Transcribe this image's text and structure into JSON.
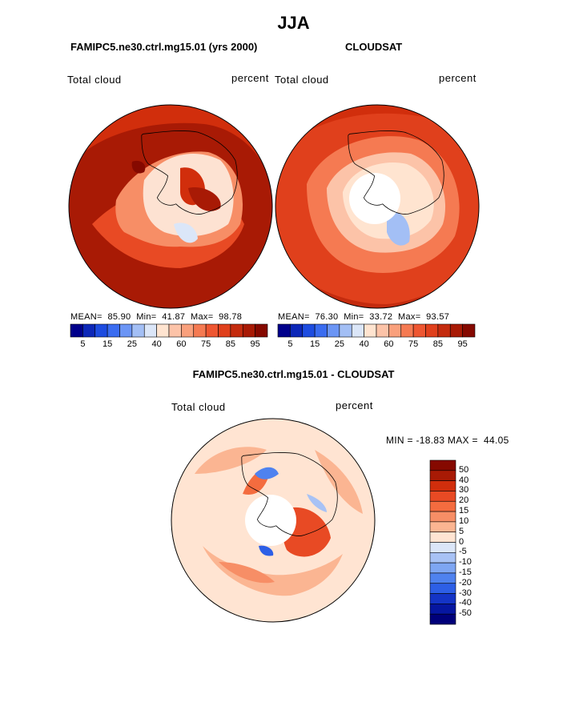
{
  "title": "JJA",
  "panels": [
    {
      "title": "FAMIPC5.ne30.ctrl.mg15.01 (yrs 2000)",
      "left_label": "Total cloud",
      "right_label": "percent",
      "stats": {
        "mean_label": "MEAN=",
        "mean": "85.90",
        "min_label": "Min=",
        "min": "41.87",
        "max_label": "Max=",
        "max": "98.78"
      }
    },
    {
      "title": "CLOUDSAT",
      "left_label": "Total cloud",
      "right_label": "percent",
      "stats": {
        "mean_label": "MEAN=",
        "mean": "76.30",
        "min_label": "Min=",
        "min": "33.72",
        "max_label": "Max=",
        "max": "93.57"
      }
    }
  ],
  "colorbar_top": {
    "labels": [
      "5",
      "15",
      "25",
      "40",
      "60",
      "75",
      "85",
      "95"
    ],
    "colors": [
      "#00008b",
      "#0c27b8",
      "#1d4ce0",
      "#3a6cf0",
      "#6b95f5",
      "#a3bff5",
      "#dbe6f8",
      "#ffe4d0",
      "#fcc3a8",
      "#f9a07c",
      "#f57a52",
      "#ee5631",
      "#e0401c",
      "#c42b0e",
      "#a81a05",
      "#850900"
    ]
  },
  "diff": {
    "title": "FAMIPC5.ne30.ctrl.mg15.01 - CLOUDSAT",
    "left_label": "Total cloud",
    "right_label": "percent",
    "minmax_text": "MIN = -18.83 MAX =  44.05",
    "colorbar": {
      "labels": [
        "50",
        "40",
        "30",
        "20",
        "15",
        "10",
        "5",
        "0",
        "-5",
        "-10",
        "-15",
        "-20",
        "-30",
        "-40",
        "-50"
      ],
      "colors": [
        "#850900",
        "#a81a05",
        "#d12e0c",
        "#e84a24",
        "#f46c3f",
        "#f78e66",
        "#fbb592",
        "#ffe4d2",
        "#dbe6f8",
        "#a8c2f5",
        "#7ea6f3",
        "#4f82ef",
        "#2d5fe6",
        "#1434c6",
        "#0616a0",
        "#00007a"
      ]
    }
  }
}
